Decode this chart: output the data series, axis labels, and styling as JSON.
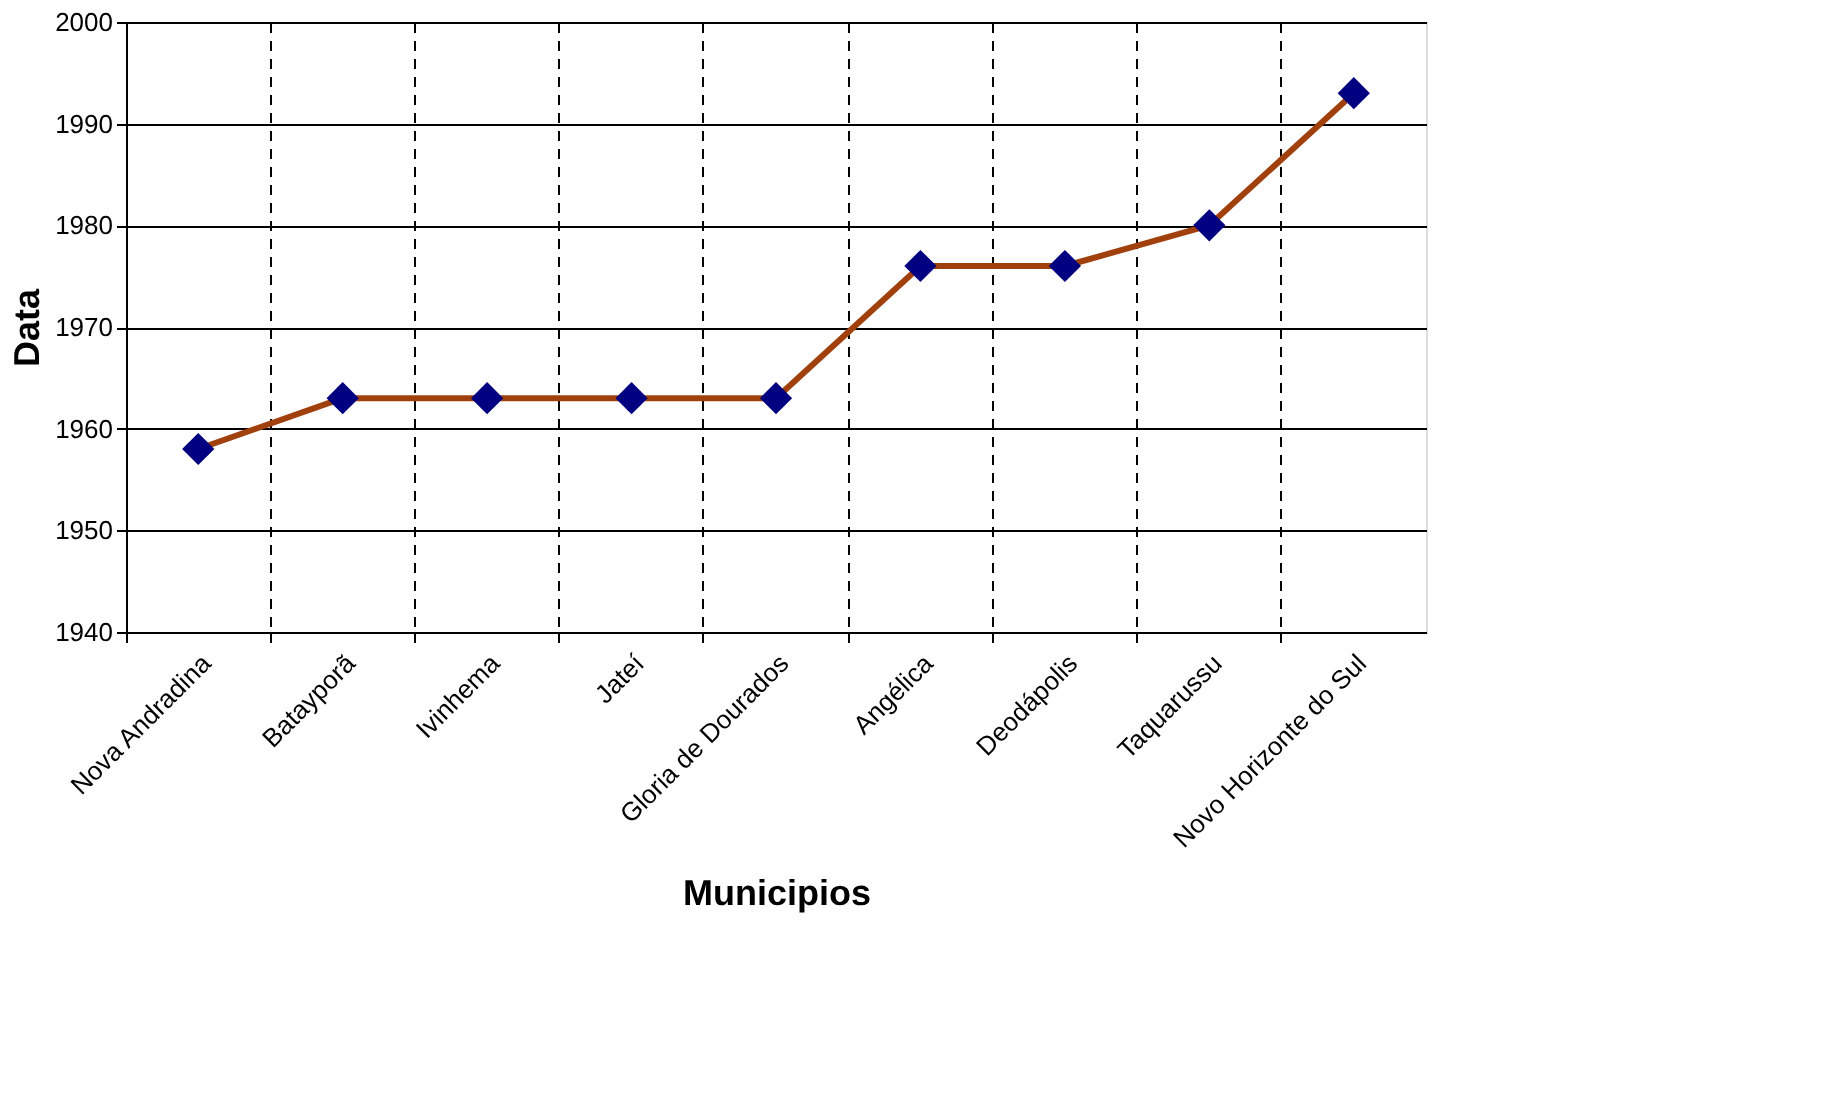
{
  "chart_data": {
    "type": "line",
    "xlabel": "Municipios",
    "ylabel": "Data",
    "categories": [
      "Nova Andradina",
      "Batayporã",
      "Ivinhema",
      "Jateí",
      "Gloria de Dourados",
      "Angélica",
      "Deodápolis",
      "Taquarussu",
      "Novo Horizonte do Sul"
    ],
    "series": [
      {
        "color": "#a0410d",
        "values": [
          1958,
          1963,
          1963,
          1963,
          1963,
          1976,
          1976,
          1980,
          1993
        ]
      }
    ],
    "ylim": [
      1940,
      2000
    ],
    "yticks": [
      1940,
      1950,
      1960,
      1970,
      1980,
      1990,
      2000
    ],
    "grid": true,
    "marker": "diamond",
    "line_style": "solid"
  }
}
